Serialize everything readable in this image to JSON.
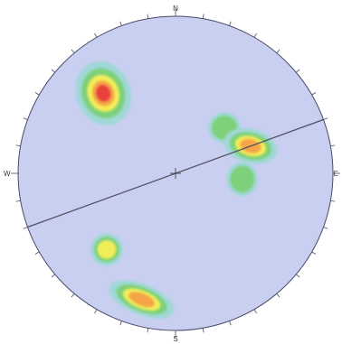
{
  "diagram": {
    "type": "stereonet-pole-density",
    "direction_labels": {
      "north": "N",
      "south": "S",
      "east": "E",
      "west": "W"
    },
    "colors": {
      "background": "#c9cff0",
      "rim": "#4a4a6a",
      "great_circle": "#555566",
      "contour_low": "#9fd8d6",
      "contour_mid1": "#7ed07a",
      "contour_mid2": "#f2ee58",
      "contour_high": "#f5a447",
      "contour_max": "#e8413a"
    },
    "great_circle": {
      "strike_deg": 70,
      "dip_direction": "SSE"
    },
    "pole_clusters": [
      {
        "name": "cluster-nw",
        "trend_deg": 318,
        "plunge_deg": 32,
        "relative_density": 1.0
      },
      {
        "name": "cluster-ne-upper",
        "trend_deg": 47,
        "plunge_deg": 55,
        "relative_density": 0.45
      },
      {
        "name": "cluster-ene",
        "trend_deg": 70,
        "plunge_deg": 48,
        "relative_density": 0.85
      },
      {
        "name": "cluster-e",
        "trend_deg": 95,
        "plunge_deg": 55,
        "relative_density": 0.45
      },
      {
        "name": "cluster-sw",
        "trend_deg": 222,
        "plunge_deg": 35,
        "relative_density": 0.5
      },
      {
        "name": "cluster-ssw",
        "trend_deg": 195,
        "plunge_deg": 18,
        "relative_density": 0.75
      }
    ]
  }
}
